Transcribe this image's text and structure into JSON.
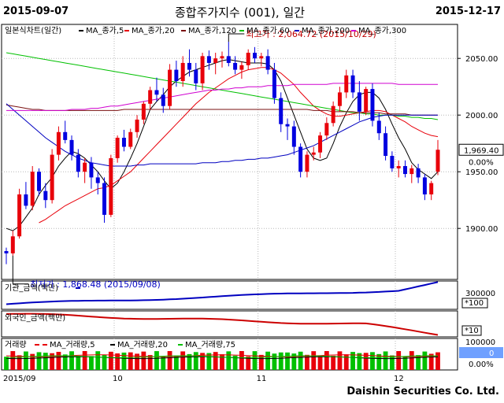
{
  "header": {
    "start_date": "2015-09-07",
    "title": "종합주가지수 (001), 일간",
    "end_date": "2015-12-17"
  },
  "footer": {
    "company": "Daishin Securities Co. Ltd."
  },
  "colors": {
    "up": "#e8000a",
    "down": "#0000e0",
    "ma5": "#000000",
    "ma20": "#e8000a",
    "ma60": "#00c000",
    "ma120": "#7a1010",
    "ma200": "#0000c0",
    "ma300": "#d000d0",
    "volume_up": "#e8000a",
    "volume_down": "#00c000",
    "inst": "#0000c0",
    "foreign": "#cc0000",
    "price_box": "#ffffff",
    "vol_box": "#6fa0ff"
  },
  "chart_data": [
    {
      "type": "candlestick",
      "panel": "price",
      "legend": {
        "label": "일본식차트(일간)",
        "entries": [
          "MA_종가,5",
          "MA_종가,20",
          "MA_종가,60",
          "MA_종가,120",
          "MA_종가,200",
          "MA_종가,300"
        ]
      },
      "yaxis": {
        "ticks": [
          1900,
          1950,
          2000,
          2050
        ],
        "tick_labels": [
          "1900.00",
          "1950.00",
          "2000.00",
          "2050.00"
        ],
        "ylim": [
          1855,
          2080
        ]
      },
      "xaxis": {
        "tick_labels": [
          "2015/09",
          "10",
          "11",
          "12"
        ]
      },
      "annotations": {
        "high": "최고가 : 2,064.72 (2015/10/29)",
        "low": "최저가 : 1,868.48 (2015/09/08)"
      },
      "last_price": "1,969.40",
      "change": "0.00%",
      "candles": [
        [
          1880,
          1883,
          1868.48,
          1878
        ],
        [
          1878,
          1898,
          1876,
          1893
        ],
        [
          1893,
          1935,
          1891,
          1930
        ],
        [
          1930,
          1941,
          1917,
          1920
        ],
        [
          1920,
          1955,
          1916,
          1950
        ],
        [
          1950,
          1953,
          1929,
          1933
        ],
        [
          1933,
          1940,
          1918,
          1925
        ],
        [
          1925,
          1970,
          1922,
          1965
        ],
        [
          1965,
          1990,
          1960,
          1985
        ],
        [
          1985,
          1995,
          1975,
          1978
        ],
        [
          1978,
          1982,
          1960,
          1965
        ],
        [
          1965,
          1970,
          1945,
          1950
        ],
        [
          1950,
          1962,
          1940,
          1958
        ],
        [
          1958,
          1963,
          1935,
          1945
        ],
        [
          1945,
          1950,
          1930,
          1940
        ],
        [
          1940,
          1945,
          1905,
          1912
        ],
        [
          1912,
          1965,
          1910,
          1962
        ],
        [
          1962,
          1982,
          1958,
          1980
        ],
        [
          1980,
          1987,
          1968,
          1972
        ],
        [
          1972,
          1988,
          1970,
          1985
        ],
        [
          1985,
          2000,
          1980,
          1996
        ],
        [
          1996,
          2012,
          1992,
          2010
        ],
        [
          2010,
          2025,
          2005,
          2022
        ],
        [
          2022,
          2033,
          2012,
          2018
        ],
        [
          2018,
          2024,
          2002,
          2008
        ],
        [
          2008,
          2045,
          2005,
          2040
        ],
        [
          2040,
          2048,
          2025,
          2030
        ],
        [
          2030,
          2052,
          2025,
          2046
        ],
        [
          2046,
          2058,
          2034,
          2040
        ],
        [
          2040,
          2046,
          2022,
          2028
        ],
        [
          2028,
          2055,
          2022,
          2052
        ],
        [
          2052,
          2057,
          2040,
          2046
        ],
        [
          2046,
          2055,
          2036,
          2050
        ],
        [
          2050,
          2056,
          2042,
          2052
        ],
        [
          2052,
          2064.72,
          2043,
          2046
        ],
        [
          2046,
          2052,
          2036,
          2040
        ],
        [
          2040,
          2047,
          2032,
          2044
        ],
        [
          2044,
          2058,
          2040,
          2055
        ],
        [
          2055,
          2060,
          2046,
          2050
        ],
        [
          2050,
          2055,
          2043,
          2052
        ],
        [
          2052,
          2058,
          2036,
          2040
        ],
        [
          2040,
          2046,
          2010,
          2015
        ],
        [
          2015,
          2020,
          1985,
          1992
        ],
        [
          1992,
          1997,
          1978,
          1990
        ],
        [
          1990,
          1995,
          1965,
          1972
        ],
        [
          1972,
          1975,
          1945,
          1950
        ],
        [
          1950,
          1968,
          1945,
          1965
        ],
        [
          1965,
          1972,
          1960,
          1967
        ],
        [
          1967,
          1985,
          1962,
          1982
        ],
        [
          1982,
          1998,
          1978,
          1993
        ],
        [
          1993,
          2012,
          1990,
          2008
        ],
        [
          2008,
          2025,
          2003,
          2020
        ],
        [
          2020,
          2040,
          2015,
          2035
        ],
        [
          2035,
          2040,
          2015,
          2020
        ],
        [
          2020,
          2030,
          1995,
          2003
        ],
        [
          2003,
          2025,
          2000,
          2023
        ],
        [
          2023,
          2028,
          1990,
          1995
        ],
        [
          1995,
          2002,
          1978,
          1984
        ],
        [
          1984,
          1990,
          1960,
          1964
        ],
        [
          1964,
          1968,
          1950,
          1953
        ],
        [
          1953,
          1960,
          1945,
          1955
        ],
        [
          1955,
          1960,
          1945,
          1948
        ],
        [
          1948,
          1956,
          1940,
          1953
        ],
        [
          1953,
          1957,
          1940,
          1945
        ],
        [
          1945,
          1948,
          1925,
          1930
        ],
        [
          1930,
          1942,
          1925,
          1940
        ],
        [
          1950,
          1978,
          1947,
          1969.4
        ]
      ],
      "ma": {
        "ma5": [
          1900,
          1898,
          1902,
          1910,
          1918,
          1930,
          1938,
          1945,
          1955,
          1962,
          1968,
          1966,
          1962,
          1956,
          1950,
          1942,
          1935,
          1940,
          1950,
          1962,
          1975,
          1990,
          2005,
          2012,
          2018,
          2025,
          2030,
          2034,
          2038,
          2040,
          2042,
          2044,
          2046,
          2048,
          2049,
          2048,
          2047,
          2046,
          2046,
          2046,
          2045,
          2040,
          2030,
          2015,
          2000,
          1985,
          1970,
          1962,
          1960,
          1962,
          1975,
          1990,
          2002,
          2012,
          2018,
          2020,
          2020,
          2015,
          2005,
          1992,
          1980,
          1970,
          1958,
          1952,
          1948,
          1944,
          1950
        ],
        "ma20": [
          null,
          null,
          null,
          null,
          null,
          1905,
          1908,
          1912,
          1916,
          1920,
          1923,
          1926,
          1929,
          1932,
          1935,
          1936,
          1938,
          1942,
          1946,
          1950,
          1956,
          1962,
          1968,
          1974,
          1980,
          1986,
          1992,
          1998,
          2004,
          2010,
          2015,
          2020,
          2024,
          2028,
          2032,
          2035,
          2038,
          2040,
          2041,
          2042,
          2042,
          2040,
          2037,
          2032,
          2027,
          2020,
          2014,
          2008,
          2004,
          2001,
          1999,
          1999,
          2000,
          2001,
          2002,
          2003,
          2004,
          2004,
          2003,
          2000,
          1997,
          1994,
          1990,
          1987,
          1984,
          1982,
          1981
        ],
        "ma60": [
          2055,
          2054,
          2053,
          2052,
          2051,
          2050,
          2049,
          2048,
          2047,
          2046,
          2045,
          2044,
          2043,
          2042,
          2041,
          2040,
          2039,
          2038,
          2037,
          2036,
          2035,
          2034,
          2033,
          2032,
          2031,
          2030,
          2029,
          2028,
          2027,
          2026,
          2025,
          2024,
          2023,
          2022,
          2021,
          2020,
          2019,
          2018,
          2017,
          2016,
          2015,
          2014,
          2013,
          2012,
          2011,
          2010,
          2009,
          2008,
          2007,
          2006,
          2005,
          2004,
          2003,
          2002,
          2002,
          2001,
          2001,
          2000,
          2000,
          2000,
          1999,
          1999,
          1998,
          1998,
          1997,
          1997,
          1996
        ],
        "ma120": [
          2009,
          2008,
          2007,
          2006,
          2005,
          2005,
          2004,
          2004,
          2004,
          2004,
          2004,
          2004,
          2004,
          2004,
          2004,
          2004,
          2004,
          2004,
          2005,
          2005,
          2005,
          2005,
          2005,
          2005,
          2005,
          2005,
          2005,
          2005,
          2005,
          2005,
          2005,
          2005,
          2005,
          2005,
          2005,
          2005,
          2005,
          2005,
          2005,
          2005,
          2005,
          2005,
          2005,
          2005,
          2005,
          2005,
          2005,
          2004,
          2004,
          2004,
          2003,
          2003,
          2003,
          2003,
          2002,
          2002,
          2002,
          2002,
          2001,
          2001,
          2001,
          2001,
          2000,
          2000,
          2000,
          2000,
          2000
        ],
        "ma200": [
          2010,
          2005,
          2000,
          1995,
          1990,
          1985,
          1980,
          1976,
          1972,
          1968,
          1965,
          1962,
          1960,
          1958,
          1957,
          1956,
          1955,
          1955,
          1955,
          1955,
          1956,
          1956,
          1957,
          1957,
          1957,
          1957,
          1957,
          1957,
          1957,
          1957,
          1958,
          1958,
          1958,
          1959,
          1959,
          1960,
          1960,
          1961,
          1961,
          1962,
          1962,
          1963,
          1964,
          1965,
          1967,
          1969,
          1971,
          1973,
          1976,
          1979,
          1982,
          1985,
          1988,
          1991,
          1994,
          1996,
          1998,
          1999,
          2000,
          2000,
          2000,
          2000,
          2000,
          2000,
          2000,
          2000,
          2000
        ],
        "ma300": [
          2004,
          2004,
          2004,
          2004,
          2004,
          2004,
          2004,
          2004,
          2004,
          2004,
          2005,
          2005,
          2005,
          2006,
          2006,
          2007,
          2008,
          2008,
          2009,
          2010,
          2011,
          2012,
          2013,
          2014,
          2015,
          2016,
          2017,
          2018,
          2019,
          2020,
          2021,
          2022,
          2022,
          2023,
          2023,
          2024,
          2024,
          2025,
          2025,
          2025,
          2026,
          2026,
          2026,
          2026,
          2027,
          2027,
          2027,
          2027,
          2027,
          2027,
          2028,
          2028,
          2028,
          2028,
          2028,
          2028,
          2028,
          2028,
          2028,
          2028,
          2027,
          2027,
          2027,
          2027,
          2027,
          2027,
          2027
        ]
      }
    },
    {
      "type": "line",
      "panel": "institution",
      "legend": {
        "label": "기관_금액(백만)"
      },
      "yaxis": {
        "tick_labels": [
          "300000"
        ],
        "unit": "*100"
      }
    },
    {
      "type": "line",
      "panel": "foreign",
      "legend": {
        "label": "외국인_금액(백만)"
      },
      "yaxis": {
        "tick_labels": [],
        "unit": "*10"
      }
    },
    {
      "type": "bar",
      "panel": "volume",
      "legend": {
        "label": "거래량",
        "entries": [
          "MA_거래량,5",
          "MA_거래량,20",
          "MA_거래량,75"
        ]
      },
      "yaxis": {
        "tick_labels": [
          "100000"
        ]
      },
      "last_value": "0",
      "change": "0.00%"
    }
  ]
}
